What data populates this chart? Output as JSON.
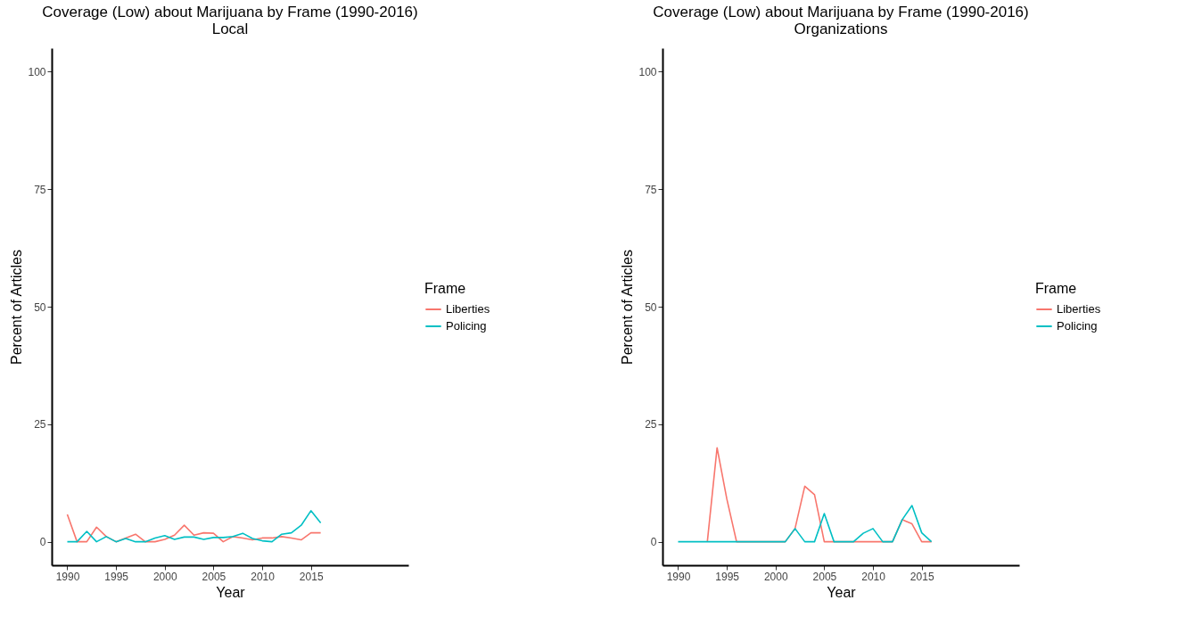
{
  "chart_data": [
    {
      "type": "line",
      "title": "Coverage (Low) about Marijuana by Frame (1990-2016)",
      "subtitle": "Local",
      "xlabel": "Year",
      "ylabel": "Percent of Articles",
      "legend_title": "Frame",
      "x": [
        1990,
        1991,
        1992,
        1993,
        1994,
        1995,
        1996,
        1997,
        1998,
        1999,
        2000,
        2001,
        2002,
        2003,
        2004,
        2005,
        2006,
        2007,
        2008,
        2009,
        2010,
        2011,
        2012,
        2013,
        2014,
        2015,
        2016
      ],
      "series": [
        {
          "name": "Liberties",
          "color": "#f8766d",
          "values": [
            5.8,
            0,
            0,
            3.1,
            1.1,
            0,
            0.8,
            1.6,
            0,
            0,
            0.5,
            1.4,
            3.5,
            1.4,
            1.9,
            1.8,
            0,
            1.1,
            0.8,
            0.4,
            0.8,
            0.8,
            1.1,
            0.8,
            0.4,
            1.9,
            1.9
          ]
        },
        {
          "name": "Policing",
          "color": "#00bfc4",
          "values": [
            0,
            0,
            2.2,
            0,
            1.1,
            0,
            0.7,
            0,
            0,
            0.8,
            1.3,
            0.5,
            1.0,
            1.0,
            0.5,
            0.9,
            0.9,
            1.1,
            1.8,
            0.7,
            0.2,
            0,
            1.6,
            1.9,
            3.5,
            6.6,
            4.0
          ]
        }
      ],
      "xlim": [
        1988.4,
        2025
      ],
      "xticks": [
        1990,
        1995,
        2000,
        2005,
        2010,
        2015
      ],
      "ylim": [
        -5,
        105
      ],
      "yticks": [
        0,
        25,
        50,
        75,
        100
      ],
      "grid": false,
      "legend": "right"
    },
    {
      "type": "line",
      "title": "Coverage (Low) about Marijuana by Frame (1990-2016)",
      "subtitle": "Organizations",
      "xlabel": "Year",
      "ylabel": "Percent of Articles",
      "legend_title": "Frame",
      "x": [
        1990,
        1991,
        1992,
        1993,
        1994,
        1995,
        1996,
        1997,
        1998,
        1999,
        2000,
        2001,
        2002,
        2003,
        2004,
        2005,
        2006,
        2007,
        2008,
        2009,
        2010,
        2011,
        2012,
        2013,
        2014,
        2015,
        2016
      ],
      "series": [
        {
          "name": "Liberties",
          "color": "#f8766d",
          "values": [
            null,
            null,
            null,
            0,
            20.0,
            9.1,
            0,
            0,
            0,
            0,
            0,
            0,
            2.8,
            11.8,
            10.0,
            0,
            0,
            0,
            0,
            0,
            0,
            0,
            0,
            4.7,
            3.8,
            0,
            0
          ]
        },
        {
          "name": "Policing",
          "color": "#00bfc4",
          "values": [
            0,
            0,
            0,
            0,
            0,
            0,
            0,
            0,
            0,
            0,
            0,
            0,
            2.8,
            0,
            0,
            6.0,
            0,
            0,
            0,
            1.8,
            2.8,
            0,
            0,
            4.7,
            7.7,
            1.9,
            0
          ]
        }
      ],
      "xlim": [
        1988.4,
        2025
      ],
      "xticks": [
        1990,
        1995,
        2000,
        2005,
        2010,
        2015
      ],
      "ylim": [
        -5,
        105
      ],
      "yticks": [
        0,
        25,
        50,
        75,
        100
      ],
      "grid": false,
      "legend": "right"
    }
  ]
}
